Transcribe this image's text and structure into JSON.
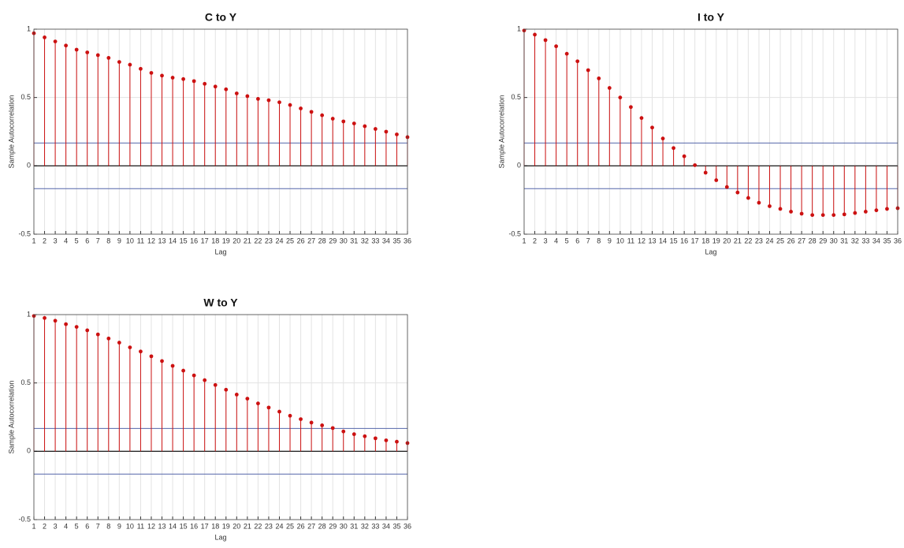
{
  "chart_data": [
    {
      "type": "stem",
      "title": "C to Y",
      "xlabel": "Lag",
      "ylabel": "Sample Autocorrelation",
      "color": "#cc1111",
      "bound_color": "#5566aa",
      "grid": true,
      "x": [
        1,
        2,
        3,
        4,
        5,
        6,
        7,
        8,
        9,
        10,
        11,
        12,
        13,
        14,
        15,
        16,
        17,
        18,
        19,
        20,
        21,
        22,
        23,
        24,
        25,
        26,
        27,
        28,
        29,
        30,
        31,
        32,
        33,
        34,
        35,
        36
      ],
      "values": [
        0.97,
        0.94,
        0.91,
        0.88,
        0.85,
        0.83,
        0.81,
        0.79,
        0.76,
        0.74,
        0.71,
        0.68,
        0.66,
        0.645,
        0.635,
        0.62,
        0.6,
        0.58,
        0.56,
        0.53,
        0.51,
        0.49,
        0.48,
        0.465,
        0.445,
        0.42,
        0.395,
        0.37,
        0.345,
        0.325,
        0.31,
        0.29,
        0.27,
        0.25,
        0.23,
        0.21
      ],
      "bounds": [
        0.167,
        -0.167
      ],
      "xlim": [
        1,
        36
      ],
      "xticks": [
        1,
        2,
        3,
        4,
        5,
        6,
        7,
        8,
        9,
        10,
        11,
        12,
        13,
        14,
        15,
        16,
        17,
        18,
        19,
        20,
        21,
        22,
        23,
        24,
        25,
        26,
        27,
        28,
        29,
        30,
        31,
        32,
        33,
        34,
        35,
        36
      ],
      "ylim": [
        -0.5,
        1
      ],
      "yticks": [
        -0.5,
        0,
        0.5,
        1
      ]
    },
    {
      "type": "stem",
      "title": "I to Y",
      "xlabel": "Lag",
      "ylabel": "Sample Autocorrelation",
      "color": "#cc1111",
      "bound_color": "#5566aa",
      "grid": true,
      "x": [
        1,
        2,
        3,
        4,
        5,
        6,
        7,
        8,
        9,
        10,
        11,
        12,
        13,
        14,
        15,
        16,
        17,
        18,
        19,
        20,
        21,
        22,
        23,
        24,
        25,
        26,
        27,
        28,
        29,
        30,
        31,
        32,
        33,
        34,
        35,
        36
      ],
      "values": [
        0.99,
        0.96,
        0.92,
        0.875,
        0.82,
        0.765,
        0.7,
        0.64,
        0.57,
        0.5,
        0.43,
        0.35,
        0.28,
        0.2,
        0.13,
        0.07,
        0.005,
        -0.05,
        -0.105,
        -0.155,
        -0.195,
        -0.235,
        -0.27,
        -0.295,
        -0.315,
        -0.335,
        -0.35,
        -0.36,
        -0.36,
        -0.36,
        -0.355,
        -0.345,
        -0.335,
        -0.325,
        -0.315,
        -0.31
      ],
      "bounds": [
        0.167,
        -0.167
      ],
      "xlim": [
        1,
        36
      ],
      "xticks": [
        1,
        2,
        3,
        4,
        5,
        6,
        7,
        8,
        9,
        10,
        11,
        12,
        13,
        14,
        15,
        16,
        17,
        18,
        19,
        20,
        21,
        22,
        23,
        24,
        25,
        26,
        27,
        28,
        29,
        30,
        31,
        32,
        33,
        34,
        35,
        36
      ],
      "ylim": [
        -0.5,
        1
      ],
      "yticks": [
        -0.5,
        0,
        0.5,
        1
      ]
    },
    {
      "type": "stem",
      "title": "W to Y",
      "xlabel": "Lag",
      "ylabel": "Sample Autocorrelation",
      "color": "#cc1111",
      "bound_color": "#5566aa",
      "grid": true,
      "x": [
        1,
        2,
        3,
        4,
        5,
        6,
        7,
        8,
        9,
        10,
        11,
        12,
        13,
        14,
        15,
        16,
        17,
        18,
        19,
        20,
        21,
        22,
        23,
        24,
        25,
        26,
        27,
        28,
        29,
        30,
        31,
        32,
        33,
        34,
        35,
        36
      ],
      "values": [
        0.99,
        0.975,
        0.955,
        0.93,
        0.91,
        0.885,
        0.855,
        0.825,
        0.795,
        0.76,
        0.73,
        0.695,
        0.66,
        0.625,
        0.59,
        0.555,
        0.52,
        0.485,
        0.45,
        0.415,
        0.385,
        0.35,
        0.32,
        0.29,
        0.26,
        0.235,
        0.21,
        0.19,
        0.17,
        0.145,
        0.125,
        0.11,
        0.095,
        0.08,
        0.07,
        0.06
      ],
      "bounds": [
        0.167,
        -0.167
      ],
      "xlim": [
        1,
        36
      ],
      "xticks": [
        1,
        2,
        3,
        4,
        5,
        6,
        7,
        8,
        9,
        10,
        11,
        12,
        13,
        14,
        15,
        16,
        17,
        18,
        19,
        20,
        21,
        22,
        23,
        24,
        25,
        26,
        27,
        28,
        29,
        30,
        31,
        32,
        33,
        34,
        35,
        36
      ],
      "ylim": [
        -0.5,
        1
      ],
      "yticks": [
        -0.5,
        0,
        0.5,
        1
      ]
    }
  ]
}
